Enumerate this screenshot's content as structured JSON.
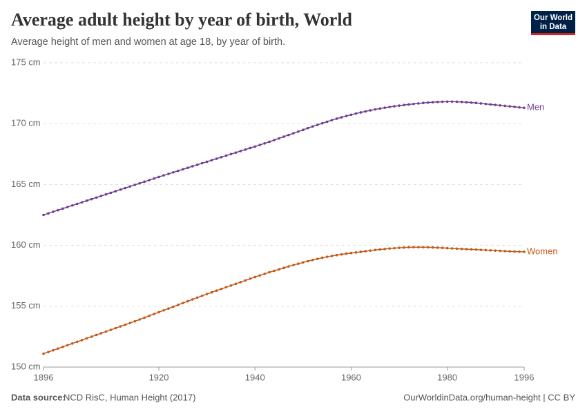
{
  "chart_data": {
    "type": "line",
    "title": "Average adult height by year of birth, World",
    "subtitle": "Average height of men and women at age 18, by year of birth.",
    "logo": [
      "Our World",
      "in Data"
    ],
    "source_label": "Data source:",
    "source": "NCD RisC, Human Height (2017)",
    "footer_right": "OurWorldinData.org/human-height | CC BY",
    "x": [
      1896,
      1897,
      1898,
      1899,
      1900,
      1901,
      1902,
      1903,
      1904,
      1905,
      1906,
      1907,
      1908,
      1909,
      1910,
      1911,
      1912,
      1913,
      1914,
      1915,
      1916,
      1917,
      1918,
      1919,
      1920,
      1921,
      1922,
      1923,
      1924,
      1925,
      1926,
      1927,
      1928,
      1929,
      1930,
      1931,
      1932,
      1933,
      1934,
      1935,
      1936,
      1937,
      1938,
      1939,
      1940,
      1941,
      1942,
      1943,
      1944,
      1945,
      1946,
      1947,
      1948,
      1949,
      1950,
      1951,
      1952,
      1953,
      1954,
      1955,
      1956,
      1957,
      1958,
      1959,
      1960,
      1961,
      1962,
      1963,
      1964,
      1965,
      1966,
      1967,
      1968,
      1969,
      1970,
      1971,
      1972,
      1973,
      1974,
      1975,
      1976,
      1977,
      1978,
      1979,
      1980,
      1981,
      1982,
      1983,
      1984,
      1985,
      1986,
      1987,
      1988,
      1989,
      1990,
      1991,
      1992,
      1993,
      1994,
      1995,
      1996
    ],
    "series": [
      {
        "name": "Men",
        "color": "#6d3e91",
        "values": [
          162.5,
          162.63,
          162.76,
          162.89,
          163.02,
          163.15,
          163.28,
          163.41,
          163.54,
          163.67,
          163.8,
          163.93,
          164.06,
          164.19,
          164.32,
          164.45,
          164.58,
          164.71,
          164.84,
          164.97,
          165.1,
          165.23,
          165.36,
          165.49,
          165.62,
          165.75,
          165.87,
          166.0,
          166.12,
          166.25,
          166.37,
          166.5,
          166.62,
          166.75,
          166.87,
          167.0,
          167.12,
          167.25,
          167.37,
          167.5,
          167.62,
          167.75,
          167.87,
          168.0,
          168.12,
          168.25,
          168.38,
          168.51,
          168.65,
          168.79,
          168.93,
          169.07,
          169.21,
          169.35,
          169.49,
          169.63,
          169.77,
          169.9,
          170.03,
          170.16,
          170.29,
          170.41,
          170.52,
          170.63,
          170.73,
          170.83,
          170.92,
          171.01,
          171.09,
          171.17,
          171.24,
          171.31,
          171.37,
          171.43,
          171.48,
          171.53,
          171.58,
          171.62,
          171.66,
          171.7,
          171.73,
          171.76,
          171.78,
          171.8,
          171.81,
          171.81,
          171.8,
          171.78,
          171.76,
          171.73,
          171.7,
          171.66,
          171.62,
          171.58,
          171.54,
          171.5,
          171.46,
          171.42,
          171.38,
          171.34,
          171.3
        ]
      },
      {
        "name": "Women",
        "color": "#c15a1a",
        "values": [
          151.1,
          151.24,
          151.38,
          151.52,
          151.66,
          151.8,
          151.94,
          152.08,
          152.22,
          152.36,
          152.5,
          152.64,
          152.78,
          152.92,
          153.06,
          153.2,
          153.34,
          153.48,
          153.62,
          153.76,
          153.91,
          154.06,
          154.21,
          154.36,
          154.51,
          154.66,
          154.81,
          154.96,
          155.11,
          155.26,
          155.41,
          155.56,
          155.71,
          155.86,
          156.0,
          156.14,
          156.28,
          156.42,
          156.56,
          156.7,
          156.84,
          156.98,
          157.12,
          157.26,
          157.4,
          157.53,
          157.66,
          157.79,
          157.91,
          158.03,
          158.15,
          158.27,
          158.38,
          158.49,
          158.6,
          158.7,
          158.8,
          158.89,
          158.98,
          159.06,
          159.13,
          159.2,
          159.26,
          159.32,
          159.37,
          159.42,
          159.47,
          159.52,
          159.57,
          159.62,
          159.66,
          159.7,
          159.74,
          159.77,
          159.8,
          159.82,
          159.84,
          159.85,
          159.85,
          159.85,
          159.84,
          159.83,
          159.81,
          159.79,
          159.77,
          159.75,
          159.73,
          159.71,
          159.69,
          159.67,
          159.65,
          159.63,
          159.61,
          159.59,
          159.57,
          159.55,
          159.53,
          159.51,
          159.49,
          159.48,
          159.47
        ]
      }
    ],
    "xlim": [
      1896,
      1996
    ],
    "xticks": [
      1896,
      1920,
      1940,
      1960,
      1980,
      1996
    ],
    "ylim": [
      150,
      175
    ],
    "yticks": [
      {
        "value": 150,
        "label": "150 cm"
      },
      {
        "value": 155,
        "label": "155 cm"
      },
      {
        "value": 160,
        "label": "160 cm"
      },
      {
        "value": 165,
        "label": "165 cm"
      },
      {
        "value": 170,
        "label": "170 cm"
      },
      {
        "value": 175,
        "label": "175 cm"
      }
    ],
    "grid": true
  }
}
